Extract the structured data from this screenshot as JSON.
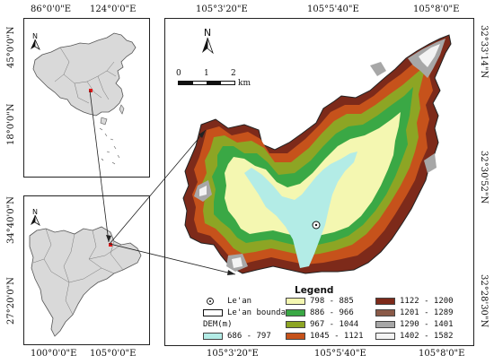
{
  "top_left_map": {
    "top_ticks": [
      "86°0'0\"E",
      "124°0'0\"E"
    ],
    "left_ticks": [
      "45°0'0\"N",
      "18°0'0\"N"
    ]
  },
  "bottom_left_map": {
    "bottom_ticks": [
      "100°0'0\"E",
      "105°0'0\"E"
    ],
    "left_ticks": [
      "34°40'0\"N",
      "27°20'0\"N"
    ]
  },
  "main_map": {
    "top_ticks": [
      "105°3'20\"E",
      "105°5'40\"E",
      "105°8'0\"E"
    ],
    "bottom_ticks": [
      "105°3'20\"E",
      "105°5'40\"E",
      "105°8'0\"E"
    ],
    "right_ticks": [
      "32°33'14\"N",
      "32°30'52\"N",
      "32°28'30\"N"
    ],
    "north_label": "N",
    "scale": {
      "labels": [
        "0",
        "1",
        "2"
      ],
      "unit": "km"
    }
  },
  "north_labels": {
    "top_left": "N",
    "bottom_left": "N"
  },
  "legend": {
    "title": "Legend",
    "point_label": "Le'an",
    "boundary_label": "Le'an boundary",
    "dem_label": "DEM(m)",
    "classes": [
      {
        "label": "686 - 797",
        "color": "#b3ece6"
      },
      {
        "label": "798 - 885",
        "color": "#f4f7b1"
      },
      {
        "label": "886 - 966",
        "color": "#3aa845"
      },
      {
        "label": "967 - 1044",
        "color": "#8da524"
      },
      {
        "label": "1045 - 1121",
        "color": "#c6521b"
      },
      {
        "label": "1122 - 1200",
        "color": "#7d2a1a"
      },
      {
        "label": "1201 - 1289",
        "color": "#8a5a48"
      },
      {
        "label": "1290 - 1401",
        "color": "#a7a7a7"
      },
      {
        "label": "1402 - 1582",
        "color": "#f3f3f3"
      }
    ]
  }
}
